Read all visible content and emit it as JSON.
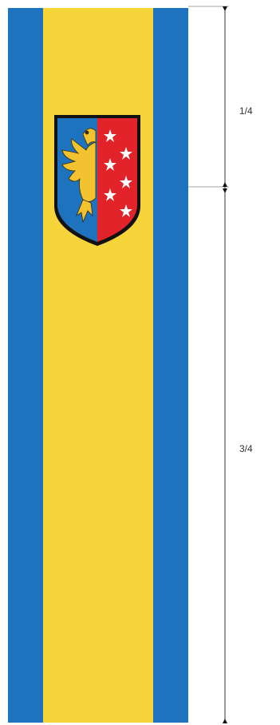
{
  "colors": {
    "blue": "#1E73BE",
    "yellow": "#F6D53A",
    "red": "#E2232A",
    "line": "#444444"
  },
  "coat_of_arms": {
    "left_field": "eagle",
    "right_field": "six stars",
    "icon": "coat-of-arms-icon"
  },
  "dimensions": {
    "top_ratio": "1/4",
    "bottom_ratio": "3/4"
  }
}
